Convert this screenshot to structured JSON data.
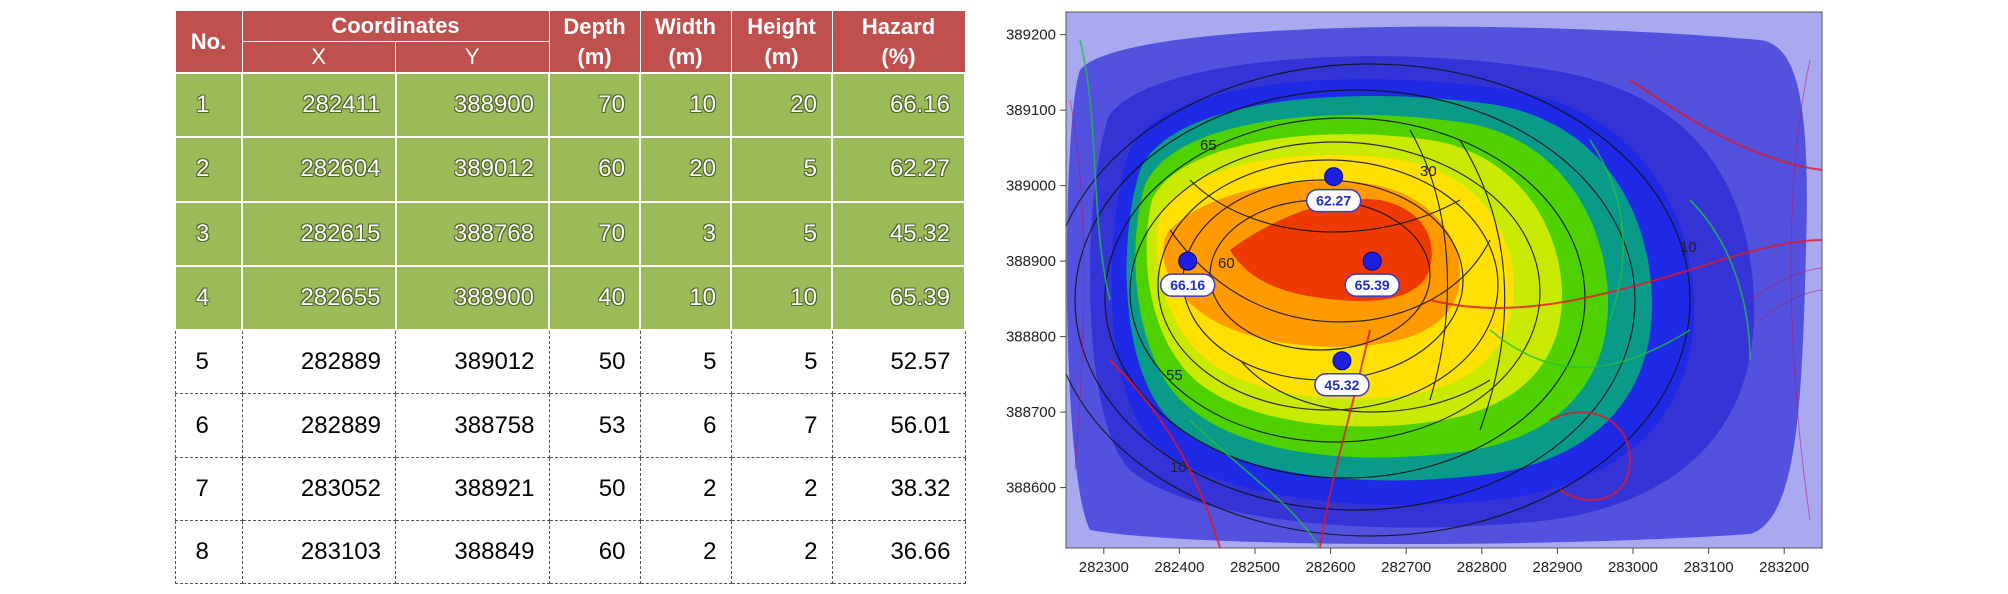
{
  "table": {
    "headers": {
      "no": "No.",
      "coordinates": "Coordinates",
      "x": "X",
      "y": "Y",
      "depth": [
        "Depth",
        "(m)"
      ],
      "width": [
        "Width",
        "(m)"
      ],
      "height": [
        "Height",
        "(m)"
      ],
      "hazard": [
        "Hazard",
        "(%)"
      ]
    },
    "rows": [
      {
        "no": "1",
        "x": "282411",
        "y": "388900",
        "depth": "70",
        "width": "10",
        "height": "20",
        "hazard": "66.16",
        "highlight": true
      },
      {
        "no": "2",
        "x": "282604",
        "y": "389012",
        "depth": "60",
        "width": "20",
        "height": "5",
        "hazard": "62.27",
        "highlight": true
      },
      {
        "no": "3",
        "x": "282615",
        "y": "388768",
        "depth": "70",
        "width": "3",
        "height": "5",
        "hazard": "45.32",
        "highlight": true
      },
      {
        "no": "4",
        "x": "282655",
        "y": "388900",
        "depth": "40",
        "width": "10",
        "height": "10",
        "hazard": "65.39",
        "highlight": true
      },
      {
        "no": "5",
        "x": "282889",
        "y": "389012",
        "depth": "50",
        "width": "5",
        "height": "5",
        "hazard": "52.57",
        "highlight": false
      },
      {
        "no": "6",
        "x": "282889",
        "y": "388758",
        "depth": "53",
        "width": "6",
        "height": "7",
        "hazard": "56.01",
        "highlight": false
      },
      {
        "no": "7",
        "x": "283052",
        "y": "388921",
        "depth": "50",
        "width": "2",
        "height": "2",
        "hazard": "38.32",
        "highlight": false
      },
      {
        "no": "8",
        "x": "283103",
        "y": "388849",
        "depth": "60",
        "width": "2",
        "height": "2",
        "hazard": "36.66",
        "highlight": false
      }
    ],
    "colors": {
      "header": "#c0504d",
      "highlight_row": "#9bbb59"
    }
  },
  "chart_data": {
    "type": "heatmap",
    "title": "",
    "xlabel": "",
    "ylabel": "",
    "xlim": [
      282250,
      283250
    ],
    "ylim": [
      388520,
      389230
    ],
    "x_ticks": [
      282300,
      282400,
      282500,
      282600,
      282700,
      282800,
      282900,
      283000,
      283100,
      283200
    ],
    "y_ticks": [
      388600,
      388700,
      388800,
      388900,
      389000,
      389100,
      389200
    ],
    "grid": false,
    "contour_labels": [
      "65",
      "60",
      "55",
      "30",
      "10",
      "10"
    ],
    "points": [
      {
        "x": 282411,
        "y": 388900,
        "label": "66.16"
      },
      {
        "x": 282604,
        "y": 389012,
        "label": "62.27"
      },
      {
        "x": 282615,
        "y": 388768,
        "label": "45.32"
      },
      {
        "x": 282655,
        "y": 388900,
        "label": "65.39"
      }
    ],
    "colors": {
      "point": "#1f1fe0",
      "background": "#a7a7ee"
    }
  }
}
